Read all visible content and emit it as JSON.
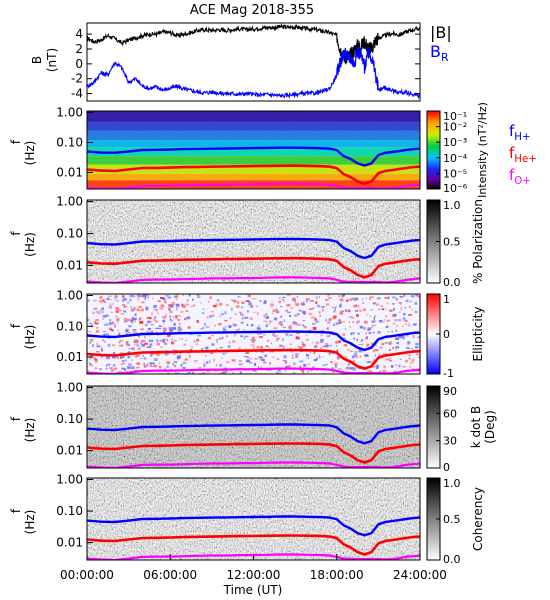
{
  "title": "ACE Mag 2018-355",
  "xlabel": "Time (UT)",
  "x_ticks": [
    "00:00:00",
    "06:00:00",
    "12:00:00",
    "18:00:00",
    "24:00:00"
  ],
  "f_ticks": [
    "1.00",
    "0.10",
    "0.01"
  ],
  "colors": {
    "B": "#000000",
    "BR": "#0000ff",
    "fH": "#0000ff",
    "fHe": "#ff0000",
    "fO": "#ff00ff"
  },
  "chart_data": [
    {
      "type": "line",
      "panel": "magnetic field",
      "ylabel": "B (nT)",
      "ylabel_parts": [
        "B",
        "(nT)"
      ],
      "y_ticks": [
        "4",
        "2",
        "0",
        "-2",
        "-4"
      ],
      "ylim": [
        -5,
        5.5
      ],
      "xlim_hours": [
        0,
        24
      ],
      "legend": [
        {
          "name": "|B|",
          "color": "#000000"
        },
        {
          "name": "B",
          "sub": "R",
          "color": "#0000ff"
        }
      ],
      "series": [
        {
          "name": "|B|",
          "color": "#000000",
          "x": [
            0,
            0.5,
            1,
            1.5,
            2,
            2.5,
            3,
            3.5,
            4,
            4.5,
            5,
            5.5,
            6,
            6.5,
            7,
            7.5,
            8,
            8.5,
            9,
            9.5,
            10,
            10.5,
            11,
            11.5,
            12,
            12.5,
            13,
            13.5,
            14,
            14.5,
            15,
            15.5,
            16,
            16.5,
            17,
            17.5,
            18,
            18.25,
            18.5,
            18.75,
            19,
            19.25,
            19.5,
            19.75,
            20,
            20.25,
            20.5,
            20.75,
            21,
            21.5,
            22,
            22.5,
            23,
            23.5,
            24
          ],
          "y": [
            3.5,
            3.0,
            3.2,
            3.8,
            3.4,
            2.8,
            3.2,
            3.5,
            3.8,
            4.0,
            4.0,
            4.3,
            4.2,
            3.8,
            4.0,
            4.2,
            4.5,
            4.6,
            4.5,
            4.6,
            4.5,
            4.6,
            4.7,
            4.6,
            4.7,
            4.8,
            4.9,
            4.9,
            5.0,
            4.9,
            5.0,
            4.8,
            4.7,
            4.6,
            4.4,
            4.2,
            3.8,
            2.0,
            1.0,
            0.8,
            1.2,
            1.8,
            2.5,
            2.4,
            3.0,
            2.2,
            2.0,
            3.0,
            3.5,
            3.8,
            4.1,
            3.9,
            4.3,
            4.6,
            4.8
          ]
        },
        {
          "name": "BR",
          "color": "#0000ff",
          "x": [
            0,
            0.5,
            1,
            1.5,
            2,
            2.5,
            3,
            3.5,
            4,
            4.5,
            5,
            5.5,
            6,
            6.5,
            7,
            7.5,
            8,
            8.5,
            9,
            9.5,
            10,
            10.5,
            11,
            11.5,
            12,
            12.5,
            13,
            13.5,
            14,
            14.5,
            15,
            15.5,
            16,
            16.5,
            17,
            17.5,
            18,
            18.25,
            18.5,
            18.75,
            19,
            19.25,
            19.5,
            19.75,
            20,
            20.25,
            20.5,
            20.75,
            21,
            21.5,
            22,
            22.5,
            23,
            23.5,
            24
          ],
          "y": [
            -3.0,
            -2.5,
            -1.2,
            -1.5,
            0.2,
            -0.5,
            -2.5,
            -2.0,
            -3.0,
            -3.3,
            -3.1,
            -3.5,
            -3.3,
            -3.0,
            -3.4,
            -3.6,
            -3.8,
            -3.9,
            -3.8,
            -3.9,
            -4.0,
            -4.0,
            -4.1,
            -4.0,
            -4.1,
            -4.2,
            -4.1,
            -4.2,
            -4.3,
            -4.2,
            -4.1,
            -4.0,
            -4.0,
            -3.9,
            -3.7,
            -3.3,
            -1.5,
            0.3,
            1.5,
            1.0,
            0.8,
            0.0,
            1.8,
            1.2,
            -0.5,
            1.5,
            1.0,
            -1.0,
            -3.5,
            -3.2,
            -3.6,
            -3.8,
            -3.9,
            -4.1,
            -4.3
          ]
        }
      ]
    },
    {
      "type": "heatmap",
      "panel": "intensity",
      "ylabel": "f (Hz)",
      "ylabel_parts": [
        "f",
        "(Hz)"
      ],
      "colorbar_label": "Intensity (nT²/Hz)",
      "colorbar_ticks": [
        "10⁻¹",
        "10⁻²",
        "10⁻³",
        "10⁻⁴",
        "10⁻⁵",
        "10⁻⁶"
      ],
      "ylim_hz": [
        0.003,
        1.2
      ],
      "legend": [
        {
          "name": "f",
          "sub": "H+",
          "color": "#0000ff"
        },
        {
          "name": "f",
          "sub": "He+",
          "color": "#ff0000"
        },
        {
          "name": "f",
          "sub": "O+",
          "color": "#ff00ff"
        }
      ]
    },
    {
      "type": "heatmap",
      "panel": "polarization",
      "ylabel": "f (Hz)",
      "ylabel_parts": [
        "f",
        "(Hz)"
      ],
      "colorbar_label": "% Polarization",
      "colorbar_ticks": [
        "1.0",
        "0.5",
        "0.0"
      ]
    },
    {
      "type": "heatmap",
      "panel": "ellipticity",
      "ylabel": "f (Hz)",
      "ylabel_parts": [
        "f",
        "(Hz)"
      ],
      "colorbar_label": "Ellipticity",
      "colorbar_ticks": [
        "1",
        "0",
        "-1"
      ]
    },
    {
      "type": "heatmap",
      "panel": "wave normal angle",
      "ylabel": "f (Hz)",
      "ylabel_parts": [
        "f",
        "(Hz)"
      ],
      "colorbar_label": "k dot B (Deg)",
      "colorbar_label_parts": [
        "k dot B",
        "(Deg)"
      ],
      "colorbar_ticks": [
        "90",
        "60",
        "30",
        "0"
      ]
    },
    {
      "type": "heatmap",
      "panel": "coherency",
      "ylabel": "f (Hz)",
      "ylabel_parts": [
        "f",
        "(Hz)"
      ],
      "colorbar_label": "Coherency",
      "colorbar_ticks": [
        "1.0",
        "0.5",
        "0.0"
      ]
    }
  ],
  "gyrofrequency": {
    "x": [
      0,
      1,
      2,
      3,
      4,
      5,
      6,
      7,
      8,
      9,
      10,
      11,
      12,
      13,
      14,
      15,
      16,
      17,
      17.5,
      18,
      18.5,
      19,
      19.5,
      20,
      20.5,
      21,
      21.5,
      22,
      22.5,
      23,
      23.5,
      24
    ],
    "fH": [
      0.05,
      0.046,
      0.045,
      0.05,
      0.056,
      0.057,
      0.058,
      0.06,
      0.061,
      0.062,
      0.063,
      0.064,
      0.065,
      0.066,
      0.067,
      0.067,
      0.066,
      0.064,
      0.062,
      0.055,
      0.035,
      0.028,
      0.02,
      0.017,
      0.02,
      0.038,
      0.045,
      0.048,
      0.052,
      0.056,
      0.06,
      0.062
    ],
    "fHe": [
      0.0125,
      0.0115,
      0.0112,
      0.0125,
      0.014,
      0.0142,
      0.0145,
      0.015,
      0.0152,
      0.0155,
      0.0158,
      0.016,
      0.0162,
      0.0165,
      0.0167,
      0.0168,
      0.0165,
      0.016,
      0.0155,
      0.0138,
      0.0088,
      0.007,
      0.005,
      0.0042,
      0.005,
      0.0095,
      0.0112,
      0.012,
      0.013,
      0.014,
      0.015,
      0.0155
    ],
    "fO": [
      0.0031,
      0.0029,
      0.0028,
      0.0031,
      0.0035,
      0.0036,
      0.0036,
      0.0037,
      0.0038,
      0.0039,
      0.0039,
      0.004,
      0.004,
      0.0041,
      0.0042,
      0.0042,
      0.0041,
      0.004,
      0.0039,
      0.0035,
      0.0031,
      0.003,
      0.003,
      0.003,
      0.003,
      0.003,
      0.0029,
      0.003,
      0.0032,
      0.0035,
      0.0037,
      0.0039
    ]
  }
}
